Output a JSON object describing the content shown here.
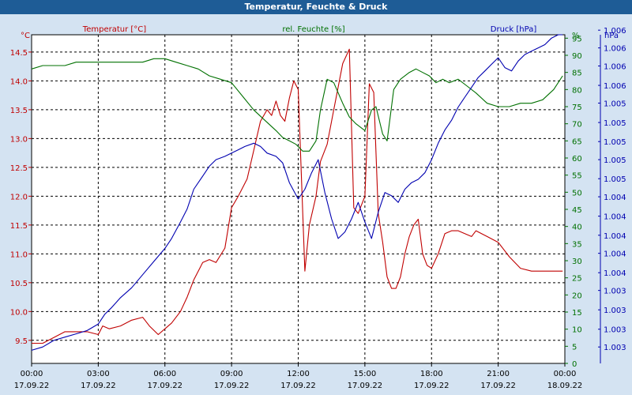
{
  "window": {
    "title": "Temperatur, Feuchte & Druck"
  },
  "chart_data": {
    "type": "line",
    "title": "Temperatur, Feuchte & Druck",
    "colors": {
      "temperature": "#c00000",
      "humidity": "#007000",
      "pressure": "#0000b0",
      "background": "#d4e3f2"
    },
    "x_ticks": [
      {
        "time": "00:00",
        "date": "17.09.22"
      },
      {
        "time": "03:00",
        "date": "17.09.22"
      },
      {
        "time": "06:00",
        "date": "17.09.22"
      },
      {
        "time": "09:00",
        "date": "17.09.22"
      },
      {
        "time": "12:00",
        "date": "17.09.22"
      },
      {
        "time": "15:00",
        "date": "17.09.22"
      },
      {
        "time": "18:00",
        "date": "17.09.22"
      },
      {
        "time": "21:00",
        "date": "17.09.22"
      },
      {
        "time": "00:00",
        "date": "18.09.22"
      }
    ],
    "xlim_hours": [
      0,
      24
    ],
    "grid": true,
    "axes": {
      "left": {
        "label": "Temperatur [°C]",
        "unit": "°C",
        "ylim": [
          9.1,
          14.8
        ],
        "ticks": [
          "9.5",
          "10.0",
          "10.5",
          "11.0",
          "11.5",
          "12.0",
          "12.5",
          "13.0",
          "13.5",
          "14.0",
          "14.5"
        ],
        "tick_values": [
          9.5,
          10.0,
          10.5,
          11.0,
          11.5,
          12.0,
          12.5,
          13.0,
          13.5,
          14.0,
          14.5
        ]
      },
      "middle": {
        "label": "rel. Feuchte [%]",
        "unit": "%",
        "ylim": [
          0,
          96
        ],
        "ticks": [
          "0",
          "5",
          "10",
          "15",
          "20",
          "25",
          "30",
          "35",
          "40",
          "45",
          "50",
          "55",
          "60",
          "65",
          "70",
          "75",
          "80",
          "85",
          "90",
          "95"
        ],
        "tick_values": [
          0,
          5,
          10,
          15,
          20,
          25,
          30,
          35,
          40,
          45,
          50,
          55,
          60,
          65,
          70,
          75,
          80,
          85,
          90,
          95
        ]
      },
      "right": {
        "label": "Druck [hPa]",
        "unit": "hPa",
        "ticks": [
          "1.003",
          "1.003",
          "1.003",
          "1.003",
          "1.004",
          "1.004",
          "1.004",
          "1.004",
          "1.004",
          "1.005",
          "1.005",
          "1.005",
          "1.005",
          "1.005",
          "1.006",
          "1.006",
          "1.006",
          "1.006"
        ],
        "tick_norm": [
          0.05,
          0.104,
          0.163,
          0.222,
          0.276,
          0.335,
          0.39,
          0.448,
          0.507,
          0.562,
          0.62,
          0.675,
          0.733,
          0.792,
          0.846,
          0.905,
          0.96,
          1.014
        ]
      }
    },
    "series": [
      {
        "name": "Temperatur [°C]",
        "axis": "left",
        "color": "#c00000",
        "x": [
          0,
          0.5,
          1,
          1.5,
          2,
          2.5,
          3,
          3.2,
          3.5,
          4,
          4.5,
          5,
          5.3,
          5.7,
          6,
          6.3,
          6.7,
          7,
          7.3,
          7.7,
          8,
          8.3,
          8.7,
          9,
          9.3,
          9.7,
          10,
          10.3,
          10.6,
          10.8,
          11,
          11.2,
          11.4,
          11.6,
          11.8,
          12,
          12.3,
          12.5,
          12.8,
          13,
          13.3,
          13.6,
          14,
          14.3,
          14.5,
          14.7,
          15,
          15.2,
          15.4,
          15.6,
          15.8,
          16,
          16.2,
          16.4,
          16.6,
          16.8,
          17,
          17.2,
          17.4,
          17.6,
          17.8,
          18,
          18.3,
          18.6,
          18.9,
          19.2,
          19.5,
          19.8,
          20,
          20.5,
          21,
          21.5,
          22,
          22.5,
          23,
          23.5,
          23.9
        ],
        "values": [
          9.45,
          9.45,
          9.55,
          9.65,
          9.65,
          9.65,
          9.6,
          9.75,
          9.7,
          9.75,
          9.85,
          9.9,
          9.75,
          9.6,
          9.7,
          9.8,
          10.0,
          10.25,
          10.55,
          10.85,
          10.9,
          10.85,
          11.1,
          11.8,
          12.0,
          12.3,
          12.8,
          13.3,
          13.5,
          13.4,
          13.65,
          13.4,
          13.3,
          13.7,
          14.0,
          13.85,
          10.7,
          11.5,
          12.0,
          12.6,
          12.9,
          13.5,
          14.3,
          14.55,
          11.8,
          11.7,
          12.0,
          13.95,
          13.8,
          11.7,
          11.2,
          10.6,
          10.4,
          10.4,
          10.6,
          11.0,
          11.3,
          11.5,
          11.6,
          11.0,
          10.8,
          10.75,
          11.0,
          11.35,
          11.4,
          11.4,
          11.35,
          11.3,
          11.4,
          11.3,
          11.2,
          10.95,
          10.75,
          10.7,
          10.7,
          10.7,
          10.7
        ]
      },
      {
        "name": "rel. Feuchte [%]",
        "axis": "middle",
        "color": "#007000",
        "x": [
          0,
          0.5,
          1,
          1.5,
          2,
          2.5,
          3,
          3.5,
          4,
          4.5,
          5,
          5.5,
          6,
          6.5,
          7,
          7.5,
          8,
          8.5,
          9,
          9.5,
          10,
          10.5,
          11,
          11.3,
          11.6,
          11.9,
          12.2,
          12.5,
          12.8,
          13,
          13.3,
          13.6,
          14,
          14.3,
          14.6,
          15,
          15.3,
          15.5,
          15.8,
          16,
          16.3,
          16.6,
          17,
          17.3,
          17.6,
          17.9,
          18.2,
          18.5,
          18.8,
          19.2,
          19.6,
          20,
          20.5,
          21,
          21.5,
          22,
          22.5,
          23,
          23.5,
          23.9
        ],
        "values": [
          86,
          87,
          87,
          87,
          88,
          88,
          88,
          88,
          88,
          88,
          88,
          89,
          89,
          88,
          87,
          86,
          84,
          83,
          82,
          78,
          74,
          71,
          68,
          66,
          65,
          64,
          62,
          62,
          65,
          74,
          83,
          82,
          76,
          72,
          70,
          68,
          74,
          75,
          67,
          65,
          80,
          83,
          85,
          86,
          85,
          84,
          82,
          83,
          82,
          83,
          81,
          79,
          76,
          75,
          75,
          76,
          76,
          77,
          80,
          84
        ]
      },
      {
        "name": "Druck [hPa]",
        "axis": "right",
        "color": "#0000b0",
        "x": [
          0,
          0.5,
          1,
          1.5,
          2,
          2.5,
          3,
          3.3,
          3.6,
          4,
          4.5,
          5,
          5.5,
          6,
          6.3,
          6.7,
          7,
          7.3,
          7.7,
          8,
          8.3,
          8.7,
          9,
          9.3,
          9.6,
          10,
          10.3,
          10.6,
          11,
          11.3,
          11.6,
          12,
          12.3,
          12.6,
          12.9,
          13.2,
          13.5,
          13.8,
          14.1,
          14.4,
          14.7,
          15,
          15.3,
          15.6,
          15.9,
          16.2,
          16.5,
          16.8,
          17.1,
          17.4,
          17.7,
          18,
          18.3,
          18.6,
          18.9,
          19.2,
          19.5,
          19.8,
          20.1,
          20.4,
          20.7,
          21,
          21.3,
          21.6,
          21.9,
          22.2,
          22.5,
          22.8,
          23.1,
          23.4,
          23.7,
          23.9
        ],
        "values": [
          0.04,
          0.05,
          0.07,
          0.08,
          0.09,
          0.1,
          0.12,
          0.15,
          0.17,
          0.2,
          0.23,
          0.27,
          0.31,
          0.35,
          0.38,
          0.43,
          0.47,
          0.53,
          0.57,
          0.6,
          0.62,
          0.63,
          0.64,
          0.65,
          0.66,
          0.67,
          0.66,
          0.64,
          0.63,
          0.61,
          0.55,
          0.5,
          0.53,
          0.58,
          0.62,
          0.52,
          0.44,
          0.38,
          0.4,
          0.44,
          0.49,
          0.43,
          0.38,
          0.46,
          0.52,
          0.51,
          0.49,
          0.53,
          0.55,
          0.56,
          0.58,
          0.62,
          0.67,
          0.71,
          0.74,
          0.78,
          0.81,
          0.84,
          0.87,
          0.89,
          0.91,
          0.93,
          0.9,
          0.89,
          0.92,
          0.94,
          0.95,
          0.96,
          0.97,
          0.99,
          1.0,
          1.0
        ]
      }
    ]
  }
}
